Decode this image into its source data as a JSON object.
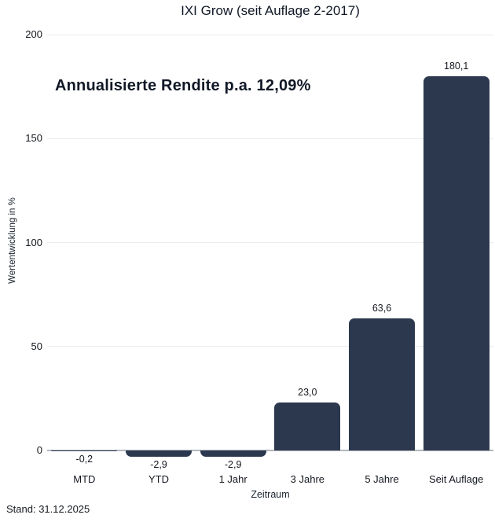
{
  "chart_data": {
    "type": "bar",
    "title": "IXI Grow (seit Auflage 2-2017)",
    "annotation": "Annualisierte Rendite p.a. 12,09%",
    "categories": [
      "MTD",
      "YTD",
      "1 Jahr",
      "3 Jahre",
      "5 Jahre",
      "Seit Auflage"
    ],
    "values": [
      -0.2,
      -2.9,
      -2.9,
      23.0,
      63.6,
      180.1
    ],
    "value_labels": [
      "-0,2",
      "-2,9",
      "-2,9",
      "23,0",
      "63,6",
      "180,1"
    ],
    "xlabel": "Zeitraum",
    "ylabel": "Wertentwicklung in %",
    "yticks": [
      0,
      50,
      100,
      150,
      200
    ],
    "ylim": [
      0,
      200
    ],
    "grid": true,
    "legend": "none",
    "bar_color": "#2b384e",
    "footer": "Stand: 31.12.2025"
  }
}
